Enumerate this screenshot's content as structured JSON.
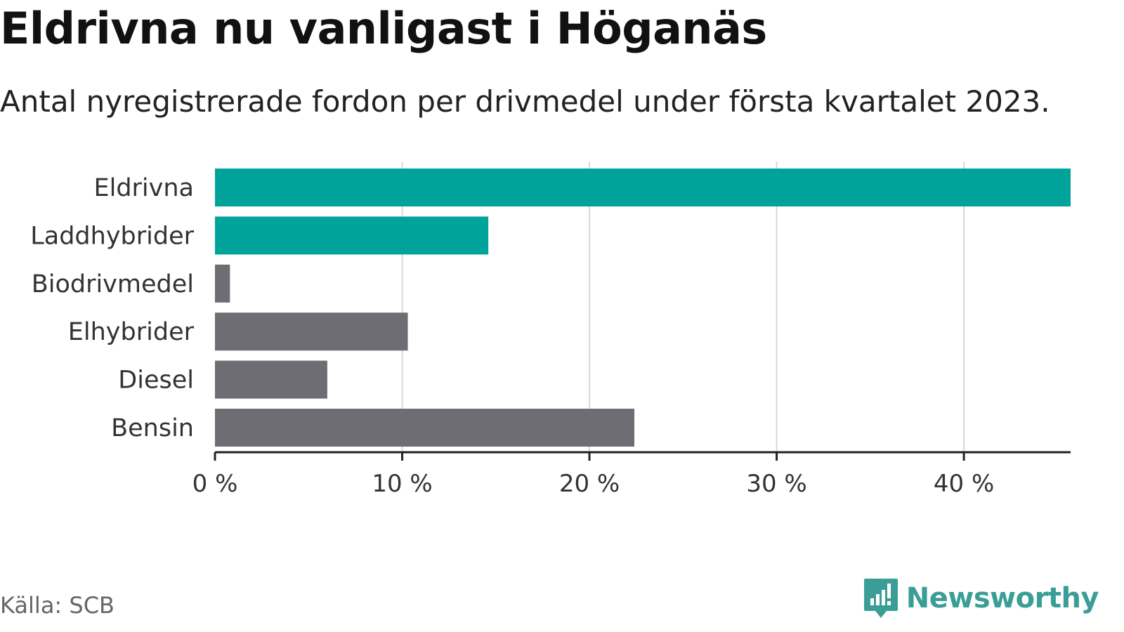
{
  "title": "Eldrivna nu vanligast i Höganäs",
  "subtitle": "Antal nyregistrerade fordon per drivmedel under första kvartalet 2023.",
  "source": "Källa: SCB",
  "brand": {
    "name": "Newsworthy",
    "icon": "newsworthy-logo-icon",
    "color": "#3a9e96"
  },
  "colors": {
    "highlight": "#00a39a",
    "other": "#6e6d73",
    "grid": "#d8d8d8",
    "axis": "#222222",
    "label": "#333333"
  },
  "chart_data": {
    "type": "bar",
    "orientation": "horizontal",
    "title": "Eldrivna nu vanligast i Höganäs",
    "subtitle": "Antal nyregistrerade fordon per drivmedel under första kvartalet 2023.",
    "categories": [
      "Eldrivna",
      "Laddhybrider",
      "Biodrivmedel",
      "Elhybrider",
      "Diesel",
      "Bensin"
    ],
    "values": [
      45.7,
      14.6,
      0.8,
      10.3,
      6.0,
      22.4
    ],
    "highlighted": [
      "Eldrivna",
      "Laddhybrider"
    ],
    "xlim": [
      0,
      45.7
    ],
    "xticks": [
      0,
      10,
      20,
      30,
      40
    ],
    "xtick_labels": [
      "0 %",
      "10 %",
      "20 %",
      "30 %",
      "40 %"
    ],
    "xlabel": "",
    "ylabel": "",
    "grid": true,
    "legend": "none"
  }
}
